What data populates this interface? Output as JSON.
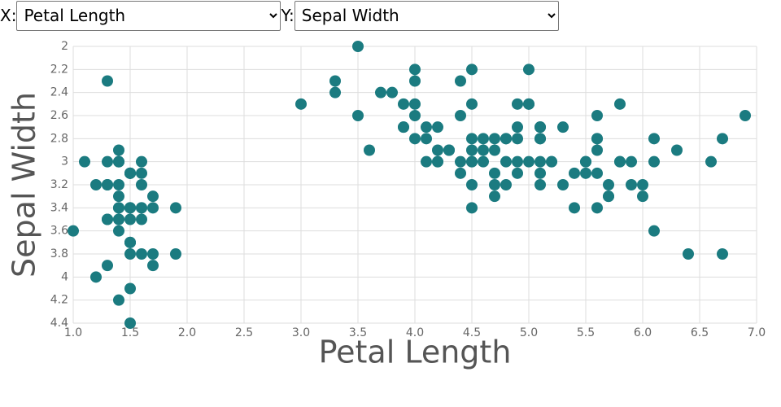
{
  "controls": {
    "x_label": "X:",
    "x_selected": "Petal Length",
    "y_label": "Y:",
    "y_selected": "Sepal Width"
  },
  "chart_data": {
    "type": "scatter",
    "x_label": "Petal Length",
    "y_label": "Sepal Width",
    "color": "#1b7b80",
    "grid": true,
    "xlim": [
      1.0,
      7.0
    ],
    "xticks": [
      {
        "value": 1.0,
        "label": "1.0"
      },
      {
        "value": 1.5,
        "label": "1.5"
      },
      {
        "value": 2.0,
        "label": "2.0"
      },
      {
        "value": 2.5,
        "label": "2.5"
      },
      {
        "value": 3.0,
        "label": "3.0"
      },
      {
        "value": 3.5,
        "label": "3.5"
      },
      {
        "value": 4.0,
        "label": "4.0"
      },
      {
        "value": 4.5,
        "label": "4.5"
      },
      {
        "value": 5.0,
        "label": "5.0"
      },
      {
        "value": 5.5,
        "label": "5.5"
      },
      {
        "value": 6.0,
        "label": "6.0"
      },
      {
        "value": 6.5,
        "label": "6.5"
      },
      {
        "value": 7.0,
        "label": "7.0"
      }
    ],
    "ylim": [
      4.4,
      2
    ],
    "yticks": [
      2,
      2.2,
      2.4,
      2.6,
      2.8,
      3,
      3.2,
      3.4,
      3.6,
      3.8,
      4,
      4.2,
      4.4
    ],
    "x": [
      1.4,
      1.4,
      1.3,
      1.5,
      1.4,
      1.7,
      1.4,
      1.5,
      1.4,
      1.5,
      1.5,
      1.6,
      1.4,
      1.1,
      1.2,
      1.5,
      1.3,
      1.4,
      1.7,
      1.5,
      1.7,
      1.5,
      1.0,
      1.7,
      1.9,
      1.6,
      1.6,
      1.5,
      1.4,
      1.6,
      1.6,
      1.5,
      1.5,
      1.4,
      1.5,
      1.2,
      1.3,
      1.5,
      1.3,
      1.5,
      1.3,
      1.3,
      1.3,
      1.6,
      1.9,
      1.4,
      1.6,
      1.4,
      1.5,
      1.4,
      4.7,
      4.5,
      4.9,
      4.0,
      4.6,
      4.5,
      4.7,
      3.3,
      4.6,
      3.9,
      3.5,
      4.2,
      4.0,
      4.7,
      3.6,
      4.4,
      4.5,
      4.1,
      4.5,
      3.9,
      4.8,
      4.0,
      4.9,
      4.7,
      4.3,
      4.4,
      4.8,
      5.0,
      4.5,
      3.5,
      3.8,
      3.7,
      3.9,
      5.1,
      4.5,
      4.5,
      4.7,
      4.4,
      4.1,
      4.0,
      4.4,
      4.6,
      4.0,
      3.3,
      4.2,
      4.2,
      4.2,
      4.3,
      3.0,
      4.1,
      6.0,
      5.1,
      5.9,
      5.6,
      5.8,
      6.6,
      4.5,
      6.3,
      5.8,
      6.1,
      5.1,
      5.3,
      5.5,
      5.0,
      5.1,
      5.3,
      5.5,
      6.7,
      6.9,
      5.0,
      5.7,
      4.9,
      6.7,
      4.9,
      5.7,
      6.0,
      4.8,
      4.9,
      5.6,
      5.8,
      6.1,
      6.4,
      5.6,
      5.1,
      5.6,
      6.1,
      5.6,
      5.5,
      4.8,
      5.4,
      5.6,
      5.1,
      5.1,
      5.9,
      5.7,
      5.2,
      5.0,
      5.2,
      5.4,
      5.1
    ],
    "values": [
      3.5,
      3.0,
      3.2,
      3.1,
      3.6,
      3.9,
      3.4,
      3.4,
      2.9,
      3.1,
      3.7,
      3.4,
      3.0,
      3.0,
      4.0,
      4.4,
      3.9,
      3.5,
      3.8,
      3.8,
      3.4,
      3.7,
      3.6,
      3.3,
      3.4,
      3.0,
      3.4,
      3.5,
      3.4,
      3.2,
      3.1,
      3.4,
      4.1,
      4.2,
      3.1,
      3.2,
      3.5,
      3.1,
      3.0,
      3.4,
      3.5,
      2.3,
      3.2,
      3.5,
      3.8,
      3.0,
      3.8,
      3.2,
      3.7,
      3.3,
      3.2,
      3.2,
      3.1,
      2.3,
      2.8,
      2.8,
      3.3,
      2.4,
      2.9,
      2.7,
      2.0,
      3.0,
      2.2,
      2.9,
      2.9,
      3.1,
      3.0,
      2.7,
      2.2,
      2.5,
      3.2,
      2.8,
      2.5,
      2.8,
      2.9,
      3.0,
      2.8,
      3.0,
      2.9,
      2.6,
      2.4,
      2.4,
      2.7,
      2.7,
      3.0,
      3.4,
      3.1,
      2.3,
      3.0,
      2.5,
      2.6,
      3.0,
      2.6,
      2.3,
      2.7,
      3.0,
      2.9,
      2.9,
      2.5,
      2.8,
      3.3,
      2.7,
      3.0,
      2.9,
      3.0,
      3.0,
      2.5,
      2.9,
      2.5,
      3.6,
      3.2,
      2.7,
      3.0,
      2.5,
      2.8,
      3.2,
      3.0,
      3.8,
      2.6,
      2.2,
      3.2,
      2.8,
      2.8,
      2.7,
      3.3,
      3.2,
      2.8,
      3.0,
      2.8,
      3.0,
      2.8,
      3.8,
      2.8,
      2.8,
      2.6,
      3.0,
      3.4,
      3.1,
      3.0,
      3.1,
      3.1,
      3.1,
      2.7,
      3.2,
      3.3,
      3.0,
      2.5,
      3.0,
      3.4,
      3.0
    ]
  }
}
